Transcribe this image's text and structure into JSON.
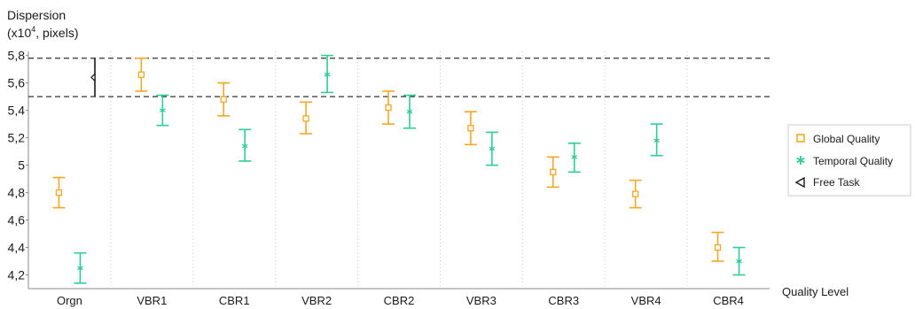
{
  "chart_data": {
    "type": "scatter",
    "ylabel_line1": "Dispersion",
    "ylabel_line2_prefix": "(x10",
    "ylabel_line2_sup": "4",
    "ylabel_line2_suffix": ", pixels)",
    "xlabel": "Quality Level",
    "ylim": [
      4.1,
      5.83
    ],
    "yticks": [
      "5,8",
      "5,6",
      "5,4",
      "5,2",
      "5",
      "4,8",
      "4,6",
      "4,4",
      "4,2"
    ],
    "ytick_values": [
      5.8,
      5.6,
      5.4,
      5.2,
      5.0,
      4.8,
      4.6,
      4.4,
      4.2
    ],
    "categories": [
      "Orgn",
      "VBR1",
      "CBR1",
      "VBR2",
      "CBR2",
      "VBR3",
      "CBR3",
      "VBR4",
      "CBR4"
    ],
    "grid": "vertical dotted",
    "legend_position": "right",
    "series": [
      {
        "name": "Global Quality",
        "marker": "square",
        "color": "#f5a623",
        "values": [
          4.8,
          5.66,
          5.48,
          5.34,
          5.42,
          5.27,
          4.95,
          4.79,
          4.4
        ],
        "lower": [
          4.69,
          5.54,
          5.36,
          5.23,
          5.3,
          5.15,
          4.84,
          4.69,
          4.3
        ],
        "upper": [
          4.91,
          5.78,
          5.6,
          5.46,
          5.54,
          5.39,
          5.06,
          4.89,
          4.51
        ]
      },
      {
        "name": "Temporal Quality",
        "marker": "asterisk",
        "color": "#2ecc9a",
        "values": [
          4.25,
          5.4,
          5.14,
          5.66,
          5.39,
          5.12,
          5.06,
          5.18,
          4.3
        ],
        "lower": [
          4.14,
          5.29,
          5.03,
          5.53,
          5.27,
          5.0,
          4.95,
          5.07,
          4.2
        ],
        "upper": [
          4.36,
          5.51,
          5.26,
          5.8,
          5.51,
          5.24,
          5.16,
          5.3,
          4.4
        ]
      }
    ],
    "free_task": {
      "name": "Free Task",
      "marker": "left-triangle",
      "color": "#1a1a1a",
      "value": 5.64,
      "lower": 5.5,
      "upper": 5.78,
      "reference_lines": [
        5.78,
        5.5
      ]
    }
  }
}
